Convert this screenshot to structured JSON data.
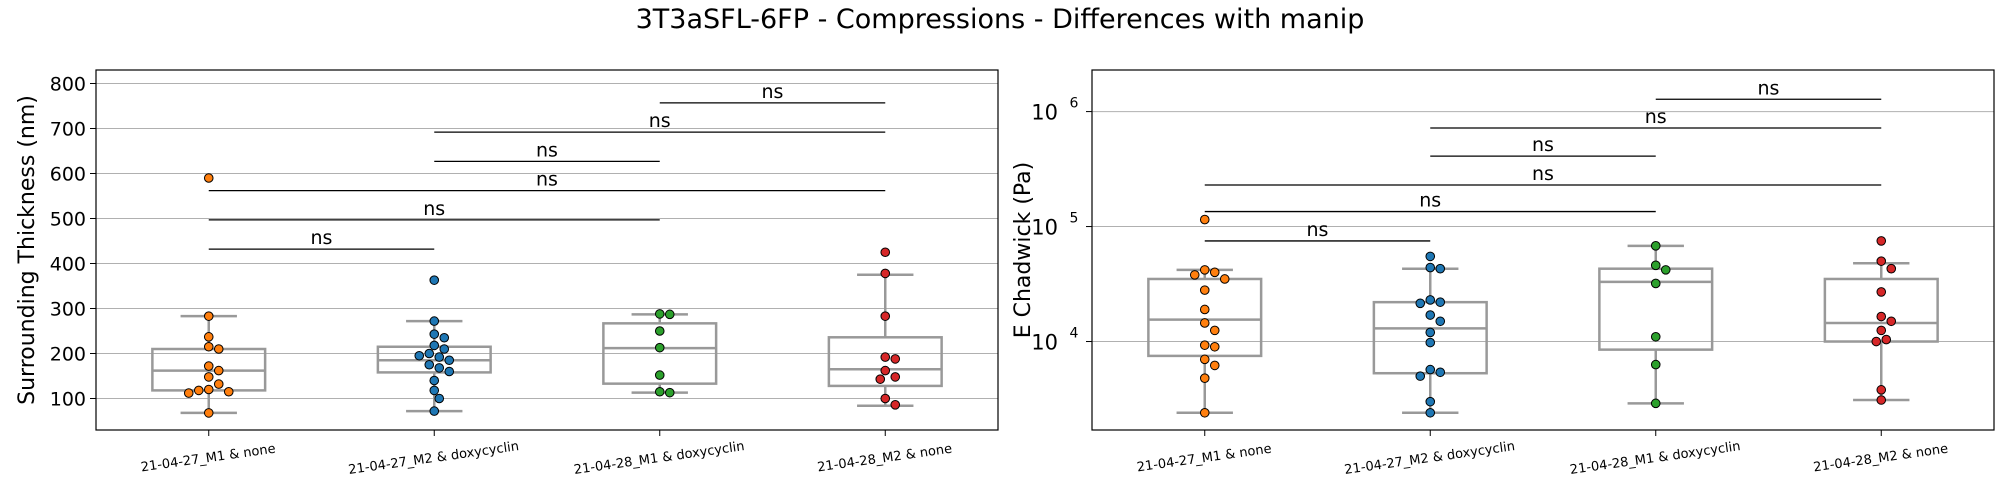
{
  "figure": {
    "suptitle": "3T3aSFL-6FP - Compressions - Differences with manip"
  },
  "colors": {
    "series": [
      "#ff7f0e",
      "#1f77b4",
      "#2ca02c",
      "#d62728"
    ],
    "box": "#999999",
    "grid": "#b0b0b0",
    "axis": "#000000"
  },
  "chart_data": [
    {
      "type": "box",
      "title": "",
      "xlabel": "",
      "ylabel": "Surrounding Thickness (nm)",
      "yscale": "linear",
      "ylim": [
        30,
        830
      ],
      "yticks": [
        100,
        200,
        300,
        400,
        500,
        600,
        700,
        800
      ],
      "ytick_labels": [
        "100",
        "200",
        "300",
        "400",
        "500",
        "600",
        "700",
        "800"
      ],
      "grid": "horizontal",
      "categories": [
        "21-04-27_M1 & none",
        "21-04-27_M2 & doxycyclin",
        "21-04-28_M1 & doxycyclin",
        "21-04-28_M2 & none"
      ],
      "boxes": [
        {
          "q1": 118,
          "median": 162,
          "q3": 210,
          "whisker_low": 68,
          "whisker_high": 283
        },
        {
          "q1": 158,
          "median": 185,
          "q3": 215,
          "whisker_low": 72,
          "whisker_high": 272
        },
        {
          "q1": 133,
          "median": 212,
          "q3": 267,
          "whisker_low": 113,
          "whisker_high": 287
        },
        {
          "q1": 128,
          "median": 165,
          "q3": 236,
          "whisker_low": 84,
          "whisker_high": 375
        }
      ],
      "points": [
        [
          590,
          283,
          237,
          215,
          210,
          172,
          162,
          148,
          132,
          120,
          118,
          115,
          112,
          68
        ],
        [
          363,
          272,
          243,
          235,
          218,
          210,
          200,
          195,
          192,
          185,
          175,
          168,
          160,
          140,
          118,
          100,
          72
        ],
        [
          288,
          287,
          250,
          213,
          152,
          115,
          113
        ],
        [
          425,
          378,
          283,
          192,
          188,
          162,
          148,
          143,
          100,
          86
        ]
      ],
      "significance": [
        {
          "from": 0,
          "to": 1,
          "label": "ns",
          "y": 432
        },
        {
          "from": 0,
          "to": 2,
          "label": "ns",
          "y": 497
        },
        {
          "from": 0,
          "to": 3,
          "label": "ns",
          "y": 562
        },
        {
          "from": 1,
          "to": 2,
          "label": "ns",
          "y": 627
        },
        {
          "from": 1,
          "to": 3,
          "label": "ns",
          "y": 692
        },
        {
          "from": 2,
          "to": 3,
          "label": "ns",
          "y": 757
        }
      ]
    },
    {
      "type": "box",
      "title": "",
      "xlabel": "",
      "ylabel": "E Chadwick (Pa)",
      "yscale": "log",
      "ylim": [
        1700,
        2300000
      ],
      "yticks": [
        10000,
        100000,
        1000000
      ],
      "ytick_labels": [
        "10",
        "10",
        "10"
      ],
      "ytick_exponents": [
        "4",
        "5",
        "6"
      ],
      "grid": "horizontal",
      "categories": [
        "21-04-27_M1 & none",
        "21-04-27_M2 & doxycyclin",
        "21-04-28_M1 & doxycyclin",
        "21-04-28_M2 & none"
      ],
      "boxes": [
        {
          "q1": 7500,
          "median": 15500,
          "q3": 35000,
          "whisker_low": 2400,
          "whisker_high": 42000
        },
        {
          "q1": 5300,
          "median": 13000,
          "q3": 22000,
          "whisker_low": 2400,
          "whisker_high": 43000
        },
        {
          "q1": 8500,
          "median": 33000,
          "q3": 43000,
          "whisker_low": 2900,
          "whisker_high": 68000
        },
        {
          "q1": 10000,
          "median": 14500,
          "q3": 35000,
          "whisker_low": 3100,
          "whisker_high": 48000
        }
      ],
      "points": [
        [
          115000,
          42000,
          40000,
          38000,
          35000,
          28000,
          19000,
          14500,
          12500,
          9300,
          9000,
          7000,
          6200,
          4800,
          2400
        ],
        [
          55000,
          44000,
          43000,
          23000,
          22000,
          21500,
          17000,
          15000,
          12000,
          9800,
          5700,
          5400,
          5000,
          3000,
          2400
        ],
        [
          68000,
          46000,
          42000,
          32000,
          11000,
          6300,
          2900
        ],
        [
          75000,
          50000,
          43000,
          27000,
          16500,
          15000,
          12500,
          10400,
          10000,
          3800,
          3100
        ]
      ],
      "significance": [
        {
          "from": 0,
          "to": 1,
          "label": "ns",
          "y": 75000
        },
        {
          "from": 0,
          "to": 2,
          "label": "ns",
          "y": 135000
        },
        {
          "from": 0,
          "to": 3,
          "label": "ns",
          "y": 230000
        },
        {
          "from": 1,
          "to": 2,
          "label": "ns",
          "y": 410000
        },
        {
          "from": 1,
          "to": 3,
          "label": "ns",
          "y": 720000
        },
        {
          "from": 2,
          "to": 3,
          "label": "ns",
          "y": 1280000
        }
      ]
    }
  ]
}
